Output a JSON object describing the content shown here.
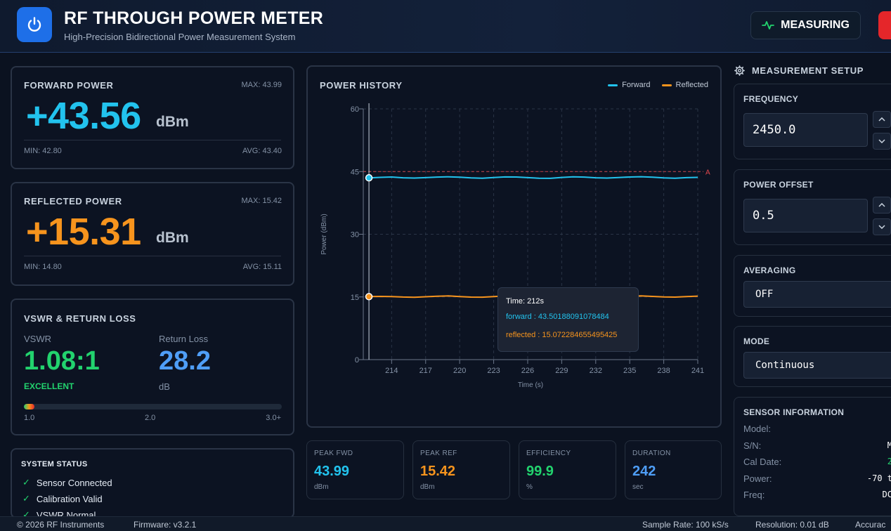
{
  "header": {
    "title": "RF THROUGH POWER METER",
    "subtitle": "High-Precision Bidirectional Power Measurement System",
    "measuring_label": "MEASURING"
  },
  "forward": {
    "title": "FORWARD POWER",
    "max": "MAX: 43.99",
    "value": "+43.56",
    "unit": "dBm",
    "min": "MIN: 42.80",
    "avg": "AVG: 43.40",
    "color": "#22c3ee"
  },
  "reflected": {
    "title": "REFLECTED POWER",
    "max": "MAX: 15.42",
    "value": "+15.31",
    "unit": "dBm",
    "min": "MIN: 14.80",
    "avg": "AVG: 15.11",
    "color": "#f7941d"
  },
  "vswr": {
    "title": "VSWR & RETURN LOSS",
    "vswr_label": "VSWR",
    "vswr_value": "1.08:1",
    "quality": "EXCELLENT",
    "rl_label": "Return Loss",
    "rl_value": "28.2",
    "rl_unit": "dB",
    "bar_level": 0.04,
    "scale": [
      "1.0",
      "2.0",
      "3.0+"
    ]
  },
  "system_status": {
    "title": "SYSTEM STATUS",
    "items": [
      "Sensor Connected",
      "Calibration Valid",
      "VSWR Normal"
    ]
  },
  "chart": {
    "title": "POWER HISTORY",
    "legend": [
      "Forward",
      "Reflected"
    ],
    "tooltip": {
      "time": "Time: 212s",
      "forward": "forward : 43.50188091078484",
      "reflected": "reflected : 15.072284655495425"
    }
  },
  "chart_data": {
    "type": "line",
    "title": "POWER HISTORY",
    "xlabel": "Time (s)",
    "ylabel": "Power (dBm)",
    "xlim": [
      211.5,
      241
    ],
    "ylim": [
      0,
      60
    ],
    "x_ticks": [
      214,
      217,
      220,
      223,
      226,
      229,
      232,
      235,
      238,
      241
    ],
    "y_ticks": [
      0,
      15,
      30,
      45,
      60
    ],
    "grid": true,
    "legend_position": "top-right",
    "reference_line": {
      "y": 45,
      "label": "A"
    },
    "x": [
      212,
      213,
      214,
      215,
      216,
      217,
      218,
      219,
      220,
      221,
      222,
      223,
      224,
      225,
      226,
      227,
      228,
      229,
      230,
      231,
      232,
      233,
      234,
      235,
      236,
      237,
      238,
      239,
      240,
      241
    ],
    "series": [
      {
        "name": "Forward",
        "color": "#22c3ee",
        "values": [
          43.5,
          43.62,
          43.7,
          43.52,
          43.45,
          43.55,
          43.68,
          43.75,
          43.66,
          43.48,
          43.4,
          43.58,
          43.72,
          43.7,
          43.55,
          43.42,
          43.38,
          43.6,
          43.74,
          43.68,
          43.52,
          43.44,
          43.58,
          43.7,
          43.76,
          43.64,
          43.5,
          43.42,
          43.55,
          43.62
        ]
      },
      {
        "name": "Reflected",
        "color": "#f7941d",
        "values": [
          15.07,
          15.12,
          15.1,
          14.98,
          14.92,
          15.05,
          15.18,
          15.24,
          15.1,
          14.96,
          14.94,
          15.08,
          15.22,
          15.18,
          15.02,
          14.96,
          14.98,
          15.12,
          15.26,
          15.2,
          15.06,
          14.98,
          15.04,
          15.16,
          15.24,
          15.12,
          15.0,
          14.96,
          15.1,
          15.2
        ]
      }
    ]
  },
  "stats": [
    {
      "label": "PEAK FWD",
      "value": "43.99",
      "unit": "dBm",
      "color": "#22c3ee"
    },
    {
      "label": "PEAK REF",
      "value": "15.42",
      "unit": "dBm",
      "color": "#f7941d"
    },
    {
      "label": "EFFICIENCY",
      "value": "99.9",
      "unit": "%",
      "color": "#22d36e"
    },
    {
      "label": "DURATION",
      "value": "242",
      "unit": "sec",
      "color": "#4f9ef7"
    }
  ],
  "setup": {
    "title": "MEASUREMENT SETUP",
    "frequency_label": "FREQUENCY",
    "frequency_value": "2450.0",
    "offset_label": "POWER OFFSET",
    "offset_value": "0.5",
    "averaging_label": "AVERAGING",
    "averaging_value": "OFF",
    "mode_label": "MODE",
    "mode_value": "Continuous"
  },
  "sensor": {
    "title": "SENSOR INFORMATION",
    "rows": [
      {
        "label": "Model:",
        "value": ""
      },
      {
        "label": "S/N:",
        "value": "M"
      },
      {
        "label": "Cal Date:",
        "value": "2"
      },
      {
        "label": "Power:",
        "value": "-70 t"
      },
      {
        "label": "Freq:",
        "value": "DC"
      }
    ]
  },
  "footer": {
    "copyright": "© 2026 RF Instruments",
    "firmware": "Firmware: v3.2.1",
    "sample_rate": "Sample Rate: 100 kS/s",
    "resolution": "Resolution: 0.01 dB",
    "accuracy": "Accurac"
  },
  "colors": {
    "forward": "#22c3ee",
    "reflected": "#f7941d",
    "good": "#22d36e",
    "info": "#4f9ef7",
    "accent": "#1e6fe8",
    "stop": "#e5262a"
  }
}
